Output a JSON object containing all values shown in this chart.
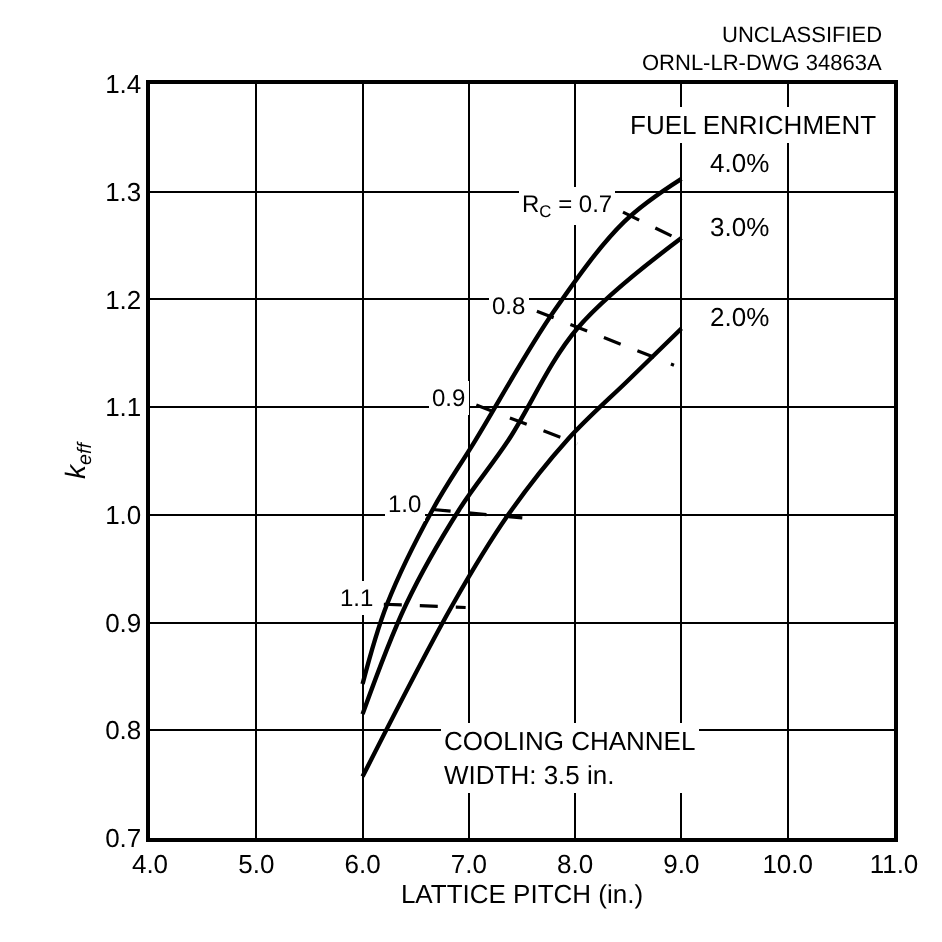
{
  "chart_data": {
    "type": "line",
    "xlabel": "LATTICE PITCH (in.)",
    "ylabel": "k$_{eff}$",
    "xlim": [
      4.0,
      11.0
    ],
    "ylim": [
      0.7,
      1.4
    ],
    "xticks": [
      {
        "value": 4,
        "label": "4.0"
      },
      {
        "value": 5,
        "label": "5.0"
      },
      {
        "value": 6,
        "label": "6.0"
      },
      {
        "value": 7,
        "label": "7.0"
      },
      {
        "value": 8,
        "label": "8.0"
      },
      {
        "value": 9,
        "label": "9.0"
      },
      {
        "value": 10,
        "label": "10.0"
      },
      {
        "value": 11,
        "label": "11.0"
      }
    ],
    "yticks": [
      0.7,
      0.8,
      0.9,
      {
        "value": 1,
        "label": "1.0"
      },
      1.1,
      1.2,
      1.3,
      1.4
    ],
    "grid": true,
    "legend": false,
    "marker": "none",
    "series": [
      {
        "name": "4.0%",
        "color": "#000000",
        "line_style": "solid",
        "x": [
          6.0,
          6.23,
          6.66,
          7.06,
          7.8,
          8.46,
          9.0
        ],
        "values": [
          0.843,
          0.917,
          1.005,
          1.069,
          1.189,
          1.272,
          1.312
        ]
      },
      {
        "name": "3.0%",
        "color": "#000000",
        "line_style": "solid",
        "x": [
          6.0,
          6.41,
          6.91,
          7.37,
          8.02,
          9.0
        ],
        "values": [
          0.815,
          0.917,
          1.005,
          1.069,
          1.173,
          1.257
        ]
      },
      {
        "name": "2.0%",
        "color": "#000000",
        "line_style": "solid",
        "x": [
          6.0,
          6.85,
          7.37,
          7.93,
          8.5,
          9.0
        ],
        "values": [
          0.757,
          0.917,
          1.0,
          1.07,
          1.125,
          1.173
        ]
      },
      {
        "name": "R$_{C}$ = 0.7",
        "color": "#000000",
        "line_style": "dashed",
        "x": [
          8.45,
          9.03
        ],
        "values": [
          1.281,
          1.253
        ]
      },
      {
        "name": "0.8",
        "color": "#000000",
        "line_style": "dashed",
        "x": [
          7.64,
          8.93
        ],
        "values": [
          1.189,
          1.139
        ]
      },
      {
        "name": "0.9",
        "color": "#000000",
        "line_style": "dashed",
        "x": [
          7.07,
          8.02
        ],
        "values": [
          1.102,
          1.066
        ]
      },
      {
        "name": "1.0",
        "color": "#000000",
        "line_style": "dashed",
        "x": [
          6.66,
          7.52
        ],
        "values": [
          1.005,
          0.997
        ]
      },
      {
        "name": "1.1",
        "color": "#000000",
        "line_style": "dashed",
        "x": [
          6.2,
          6.97
        ],
        "values": [
          0.917,
          0.914
        ]
      }
    ],
    "annotations": [
      "UNCLASSIFIED",
      "ORNL-LR-DWG 34863A",
      "FUEL ENRICHMENT",
      "COOLING CHANNEL\nWIDTH: 3.5 in."
    ]
  }
}
